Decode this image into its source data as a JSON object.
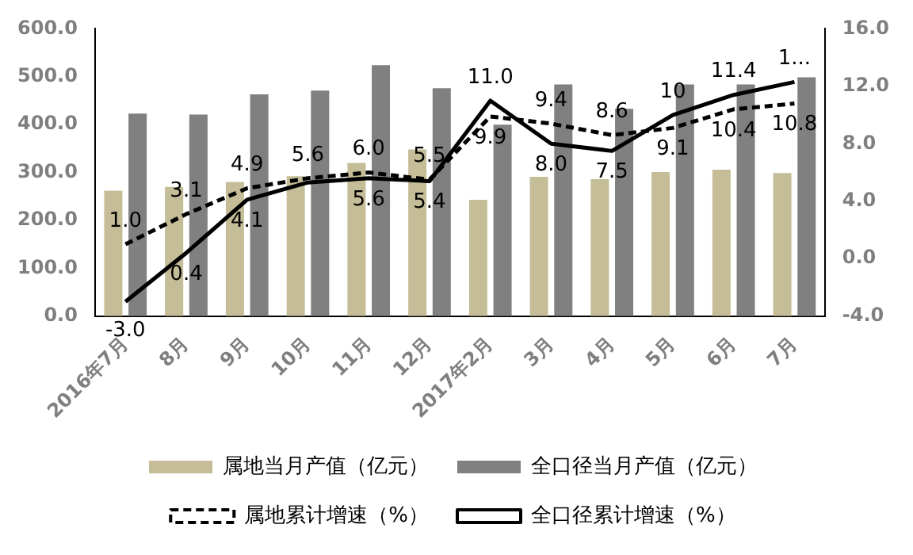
{
  "chart_data": {
    "type": "bar",
    "categories": [
      "2016年7月",
      "8月",
      "9月",
      "10月",
      "11月",
      "12月",
      "2017年2月",
      "3月",
      "4月",
      "5月",
      "6月",
      "7月"
    ],
    "series": [
      {
        "name": "属地当月产值（亿元）",
        "color": "#c4bd97",
        "values": [
          262,
          270,
          280,
          292,
          320,
          348,
          243,
          291,
          286,
          301,
          306,
          299
        ]
      },
      {
        "name": "全口径当月产值（亿元）",
        "color": "#808080",
        "values": [
          423,
          421,
          463,
          471,
          524,
          476,
          400,
          484,
          433,
          484,
          484,
          499
        ]
      },
      {
        "name": "属地累计增速（%）",
        "type": "line",
        "axis": "y2",
        "line_style": "dashed",
        "color": "#000000",
        "values": [
          1.0,
          3.1,
          4.9,
          5.6,
          6.0,
          5.5,
          9.9,
          9.4,
          8.6,
          9.1,
          10.4,
          10.8
        ],
        "value_labels": [
          "1.0",
          "3.1",
          "4.9",
          "5.6",
          "6.0",
          "5.5",
          "9.9",
          "9.4",
          "8.6",
          "9.1",
          "10.4",
          "10.8"
        ]
      },
      {
        "name": "全口径累计增速（%）",
        "type": "line",
        "axis": "y2",
        "line_style": "solid",
        "color": "#000000",
        "values": [
          -3.0,
          0.4,
          4.1,
          5.3,
          5.6,
          5.4,
          11.0,
          8.0,
          7.5,
          10,
          11.4,
          12.3
        ],
        "value_labels": [
          "-3.0",
          "0.4",
          "4.1",
          null,
          "5.6",
          "5.4",
          "11.0",
          "8.0",
          "7.5",
          "10",
          "11.4",
          "1..."
        ]
      }
    ],
    "ylim": [
      0,
      600
    ],
    "yticks": [
      {
        "value": 0,
        "label": "0.0"
      },
      {
        "value": 100,
        "label": "100.0"
      },
      {
        "value": 200,
        "label": "200.0"
      },
      {
        "value": 300,
        "label": "300.0"
      },
      {
        "value": 400,
        "label": "400.0"
      },
      {
        "value": 500,
        "label": "500.0"
      },
      {
        "value": 600,
        "label": "600.0"
      }
    ],
    "y2lim": [
      -4,
      16
    ],
    "y2ticks": [
      {
        "value": -4,
        "label": "-4.0"
      },
      {
        "value": 0,
        "label": "0.0"
      },
      {
        "value": 4,
        "label": "4.0"
      },
      {
        "value": 8,
        "label": "8.0"
      },
      {
        "value": 12,
        "label": "12.0"
      },
      {
        "value": 16,
        "label": "16.0"
      }
    ],
    "grid": false,
    "legend": "bottom",
    "marker": "none"
  }
}
